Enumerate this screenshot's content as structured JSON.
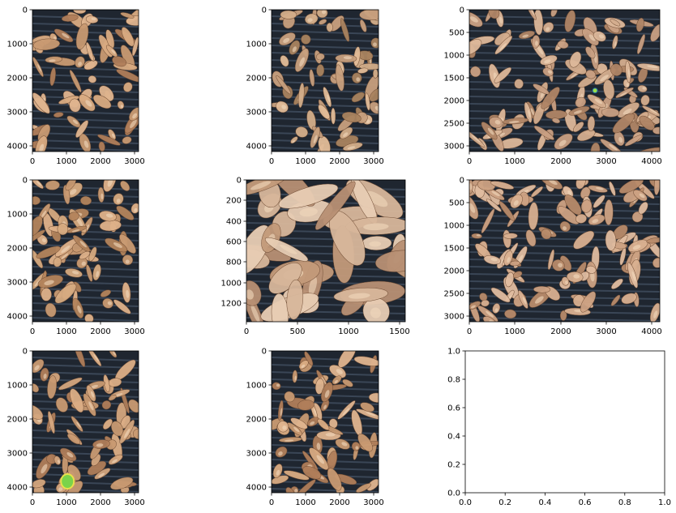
{
  "figure": {
    "panels": [
      {
        "id": "p1",
        "xticks": [
          "0",
          "1000",
          "2000",
          "3000"
        ],
        "yticks": [
          "0",
          "1000",
          "2000",
          "3000",
          "4000"
        ],
        "palette": [
          "#c99a72",
          "#e0b58f",
          "#b07e5a",
          "#d9ab82"
        ]
      },
      {
        "id": "p2",
        "xticks": [
          "0",
          "1000",
          "2000",
          "3000"
        ],
        "yticks": [
          "0",
          "1000",
          "2000",
          "3000",
          "4000"
        ],
        "palette": [
          "#c8a07e",
          "#e2bc98",
          "#a9835f",
          "#d4ae8a"
        ]
      },
      {
        "id": "p3",
        "xticks": [
          "0",
          "1000",
          "2000",
          "3000",
          "4000"
        ],
        "yticks": [
          "0",
          "500",
          "1000",
          "1500",
          "2000",
          "2500",
          "3000"
        ],
        "palette": [
          "#c9a083",
          "#ddb89a",
          "#b08566",
          "#d4ad8e"
        ]
      },
      {
        "id": "p4",
        "xticks": [
          "0",
          "1000",
          "2000",
          "3000"
        ],
        "yticks": [
          "0",
          "1000",
          "2000",
          "3000",
          "4000"
        ],
        "palette": [
          "#c99a72",
          "#dfb28a",
          "#b4845c",
          "#d6aa80"
        ]
      },
      {
        "id": "p5",
        "xticks": [
          "0",
          "500",
          "1000",
          "1500"
        ],
        "yticks": [
          "0",
          "200",
          "400",
          "600",
          "800",
          "1000",
          "1200"
        ],
        "palette": [
          "#d8b79b",
          "#e8cdb4",
          "#c39a7a",
          "#b89074"
        ]
      },
      {
        "id": "p6",
        "xticks": [
          "0",
          "1000",
          "2000",
          "3000",
          "4000"
        ],
        "yticks": [
          "0",
          "500",
          "1000",
          "1500",
          "2000",
          "2500",
          "3000"
        ],
        "palette": [
          "#cda283",
          "#e0bca0",
          "#b88b6a",
          "#d9b090"
        ]
      },
      {
        "id": "p7",
        "xticks": [
          "0",
          "1000",
          "2000",
          "3000"
        ],
        "yticks": [
          "0",
          "1000",
          "2000",
          "3000",
          "4000"
        ],
        "palette": [
          "#c99a72",
          "#dcae86",
          "#b07e5a",
          "#d4a67e"
        ]
      },
      {
        "id": "p8",
        "xticks": [
          "0",
          "1000",
          "2000",
          "3000"
        ],
        "yticks": [
          "0",
          "1000",
          "2000",
          "3000",
          "4000"
        ],
        "palette": [
          "#c99a72",
          "#e0b58f",
          "#b07e5a",
          "#d9ab82"
        ]
      },
      {
        "id": "p9",
        "xticks": [
          "0.0",
          "0.2",
          "0.4",
          "0.6",
          "0.8",
          "1.0"
        ],
        "yticks": [
          "0.0",
          "0.2",
          "0.4",
          "0.6",
          "0.8",
          "1.0"
        ],
        "palette": []
      }
    ]
  }
}
